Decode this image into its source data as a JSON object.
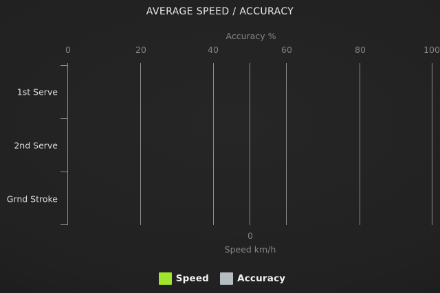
{
  "title": "AVERAGE SPEED / ACCURACY",
  "colors": {
    "speed": "#9FE52C",
    "accuracy": "#B4BDC1",
    "gridline": "#8f8f8f",
    "tick_text": "#848484",
    "category_text": "#dcdcdc",
    "title_text": "#eaeaea"
  },
  "chart_data": {
    "type": "bar",
    "orientation": "horizontal",
    "title": "AVERAGE SPEED / ACCURACY",
    "categories": [
      "1st Serve",
      "2nd Serve",
      "Grnd Stroke"
    ],
    "series": [
      {
        "name": "Speed",
        "color": "#9FE52C",
        "value_axis": "bottom",
        "values": []
      },
      {
        "name": "Accuracy",
        "color": "#B4BDC1",
        "value_axis": "top",
        "values": []
      }
    ],
    "top_axis": {
      "label": "Accuracy %",
      "ticks": [
        "0",
        "20",
        "40",
        "60",
        "80",
        "100"
      ],
      "range": [
        0,
        100
      ],
      "grid": true
    },
    "bottom_axis": {
      "label": "Speed km/h",
      "ticks": [
        "0"
      ]
    },
    "legend": {
      "position": "bottom",
      "items": [
        {
          "label": "Speed",
          "color": "#9FE52C"
        },
        {
          "label": "Accuracy",
          "color": "#B4BDC1"
        }
      ]
    },
    "note": "plot area is empty - no bar values are rendered in the screenshot"
  }
}
